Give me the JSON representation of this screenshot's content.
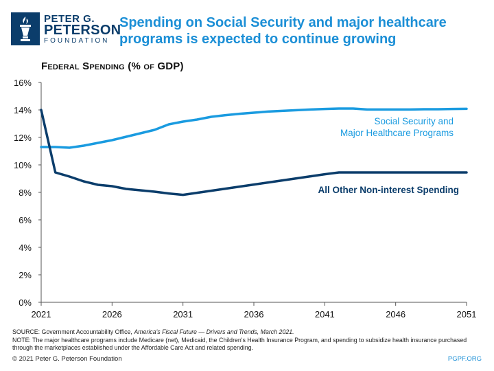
{
  "logo": {
    "line1": "PETER G.",
    "line2": "PETERSON",
    "line3": "FOUNDATION"
  },
  "headline": "Spending on Social Security and major healthcare programs is expected to continue growing",
  "colors": {
    "accent": "#1c8fd6",
    "brand": "#0b3d6b",
    "series_ss": "#1a9be0",
    "series_other": "#0b3d6b",
    "axis": "#555555",
    "text": "#111111"
  },
  "chart_data": {
    "type": "line",
    "title": "Federal Spending (% of GDP)",
    "xlabel": "",
    "ylabel": "",
    "xlim": [
      2021,
      2051
    ],
    "ylim": [
      0,
      16
    ],
    "x_ticks": [
      "2021",
      "2026",
      "2031",
      "2036",
      "2041",
      "2046",
      "2051"
    ],
    "x_tick_values": [
      2021,
      2026,
      2031,
      2036,
      2041,
      2046,
      2051
    ],
    "y_ticks": [
      "0%",
      "2%",
      "4%",
      "6%",
      "8%",
      "10%",
      "12%",
      "14%",
      "16%"
    ],
    "y_tick_values": [
      0,
      2,
      4,
      6,
      8,
      10,
      12,
      14,
      16
    ],
    "grid": false,
    "x": [
      2021,
      2022,
      2023,
      2024,
      2025,
      2026,
      2027,
      2028,
      2029,
      2030,
      2031,
      2032,
      2033,
      2034,
      2035,
      2036,
      2037,
      2038,
      2039,
      2040,
      2041,
      2042,
      2043,
      2044,
      2045,
      2046,
      2047,
      2048,
      2049,
      2050,
      2051
    ],
    "series": [
      {
        "name": "Social Security and Major Healthcare Programs",
        "label_lines": [
          "Social Security and",
          "Major Healthcare Programs"
        ],
        "values": [
          11.3,
          11.3,
          11.25,
          11.4,
          11.6,
          11.8,
          12.05,
          12.3,
          12.55,
          12.95,
          13.15,
          13.3,
          13.5,
          13.62,
          13.72,
          13.8,
          13.88,
          13.93,
          13.98,
          14.03,
          14.07,
          14.1,
          14.1,
          14.03,
          14.03,
          14.03,
          14.03,
          14.05,
          14.05,
          14.07,
          14.08
        ]
      },
      {
        "name": "All Other Non-interest Spending",
        "label_lines": [
          "All Other Non-interest Spending"
        ],
        "values": [
          14.0,
          9.45,
          9.15,
          8.8,
          8.55,
          8.45,
          8.25,
          8.15,
          8.05,
          7.92,
          7.82,
          7.97,
          8.12,
          8.27,
          8.42,
          8.57,
          8.72,
          8.87,
          9.02,
          9.17,
          9.32,
          9.45,
          9.45,
          9.45,
          9.45,
          9.45,
          9.45,
          9.45,
          9.45,
          9.45,
          9.45
        ]
      }
    ]
  },
  "footer": {
    "source_prefix": "SOURCE: Government Accountability Office, ",
    "source_italic": "America's Fiscal Future — Drivers and Trends, March 2021.",
    "note": "NOTE: The major healthcare programs include Medicare (net), Medicaid, the Children's Health Insurance Program, and spending to subsidize health insurance purchased through the marketplaces established under the Affordable Care Act and related spending.",
    "copyright": "© 2021 Peter G. Peterson Foundation",
    "url": "PGPF.ORG"
  }
}
